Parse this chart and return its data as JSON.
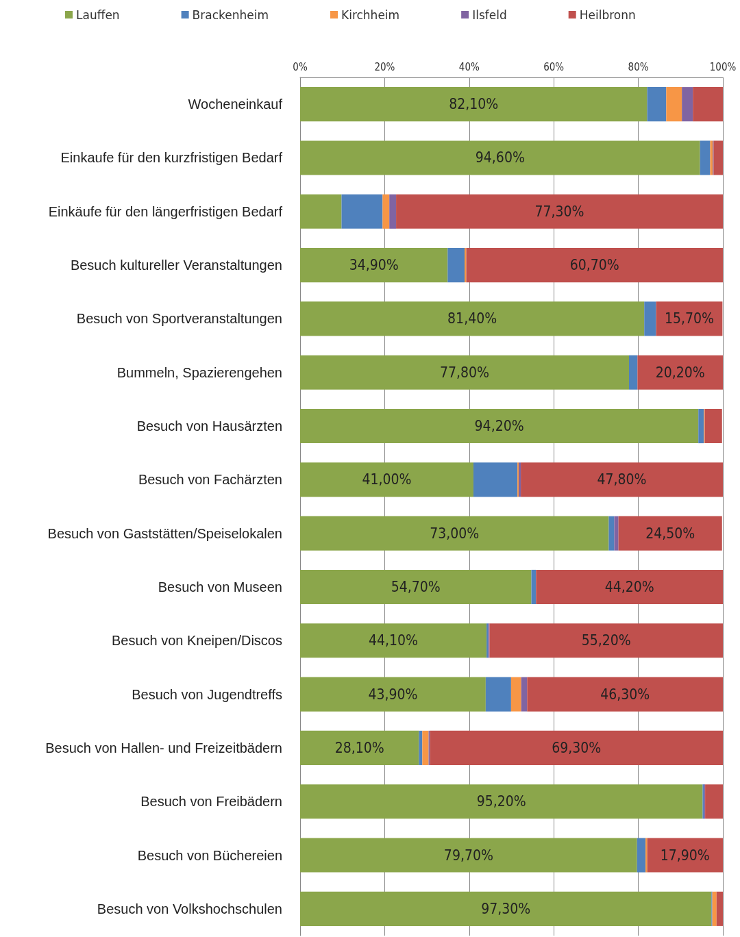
{
  "chart_data": {
    "type": "bar",
    "orientation": "horizontal",
    "stacked": true,
    "legend": "top",
    "grid": "x",
    "categories": [
      "Wocheneinkauf",
      "Einkaufe für den kurzfristigen Bedarf",
      "Einkäufe für den längerfristigen Bedarf",
      "Besuch kultureller Veranstaltungen",
      "Besuch von Sportveranstaltungen",
      "Bummeln, Spazierengehen",
      "Besuch von Hausärzten",
      "Besuch von Fachärzten",
      "Besuch von Gaststätten/Speiselokalen",
      "Besuch von Museen",
      "Besuch von Kneipen/Discos",
      "Besuch von Jugendtreffs",
      "Besuch von Hallen- und Freizeitbädern",
      "Besuch von Freibädern",
      "Besuch von Büchereien",
      "Besuch von Volkshochschulen"
    ],
    "xlim": [
      0,
      100
    ],
    "xticks": [
      {
        "value": 0,
        "label": "0%"
      },
      {
        "value": 20,
        "label": "20%"
      },
      {
        "value": 40,
        "label": "40%"
      },
      {
        "value": 60,
        "label": "60%"
      },
      {
        "value": 80,
        "label": "80%"
      },
      {
        "value": 100,
        "label": "100%"
      }
    ],
    "series": [
      {
        "name": "Lauffen",
        "color": "#8ba64b",
        "values": [
          82.1,
          94.6,
          9.8,
          34.9,
          81.4,
          77.8,
          94.2,
          41.0,
          73.0,
          54.7,
          44.1,
          43.9,
          28.1,
          95.2,
          79.7,
          97.3
        ],
        "value_labels": [
          "82,10%",
          "94,60%",
          null,
          "34,90%",
          "81,40%",
          "77,80%",
          "94,20%",
          "41,00%",
          "73,00%",
          "54,70%",
          "44,10%",
          "43,90%",
          "28,10%",
          "95,20%",
          "79,70%",
          "97,30%"
        ]
      },
      {
        "name": "Brackenheim",
        "color": "#4f81bd",
        "values": [
          4.5,
          2.4,
          9.7,
          4.0,
          2.8,
          2.0,
          1.3,
          10.4,
          1.3,
          1.1,
          0.4,
          6.0,
          0.8,
          0.3,
          2.0,
          0.2
        ]
      },
      {
        "name": "Kirchheim",
        "color": "#f79646",
        "values": [
          3.7,
          0.6,
          1.6,
          0.4,
          0,
          0,
          0.2,
          0.3,
          null,
          0,
          0,
          2.4,
          1.5,
          0,
          0.4,
          1.0
        ]
      },
      {
        "name": "Ilsfeld",
        "color": "#8064a2",
        "values": [
          2.6,
          0.2,
          1.6,
          0,
          null,
          0,
          null,
          0.5,
          1.0,
          0,
          0.3,
          1.4,
          0.3,
          0.3,
          0,
          0
        ]
      },
      {
        "name": "Heilbronn",
        "color": "#c0504d",
        "values": [
          7.1,
          2.2,
          77.3,
          60.7,
          15.7,
          20.2,
          4.1,
          47.8,
          24.5,
          44.2,
          55.2,
          46.3,
          69.3,
          4.2,
          17.9,
          1.5
        ],
        "value_labels": [
          null,
          null,
          "77,30%",
          "60,70%",
          "15,70%",
          "20,20%",
          null,
          "47,80%",
          "24,50%",
          "44,20%",
          "55,20%",
          "46,30%",
          "69,30%",
          null,
          "17,90%",
          null
        ]
      }
    ]
  }
}
